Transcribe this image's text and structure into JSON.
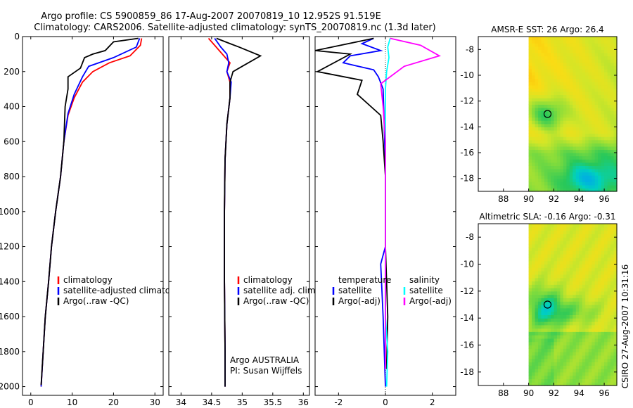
{
  "header": {
    "line1": "Argo profile: CS 5900859_86 17-Aug-2007 20070819_10 12.952S 91.519E",
    "line2": "Climatology: CARS2006. Satellite-adjusted climatology: synTS_20070819.nc (1.3d later)"
  },
  "side_label": "CSIRO 27-Aug-2007 10:31:16",
  "colors": {
    "climatology": "#ff0000",
    "satellite": "#0000ff",
    "argo": "#000000",
    "sal_satellite": "#00ffff",
    "sal_argo": "#ff00ff"
  },
  "chart_data": [
    {
      "type": "line",
      "id": "temperature",
      "xlabel": "temperature",
      "xlim": [
        -2,
        32
      ],
      "ylim": [
        2050,
        0
      ],
      "xticks": [
        "0",
        "10",
        "20",
        "30"
      ],
      "xtick_values": [
        0,
        10,
        20,
        30
      ],
      "yticks": [
        "0",
        "200",
        "400",
        "600",
        "800",
        "1000",
        "1200",
        "1400",
        "1600",
        "1800",
        "2000"
      ],
      "ytick_values": [
        0,
        200,
        400,
        600,
        800,
        1000,
        1200,
        1400,
        1600,
        1800,
        2000
      ],
      "legend": [
        "climatology",
        "satellite-adjusted climatology",
        "Argo(..raw -QC)"
      ],
      "series": [
        {
          "name": "climatology",
          "color": "#ff0000",
          "points": [
            [
              26.8,
              10
            ],
            [
              26.5,
              50
            ],
            [
              24,
              110
            ],
            [
              19,
              150
            ],
            [
              15,
              200
            ],
            [
              12.5,
              260
            ],
            [
              10.5,
              350
            ],
            [
              9,
              450
            ],
            [
              8,
              600
            ],
            [
              7.2,
              800
            ],
            [
              6,
              1000
            ],
            [
              5,
              1200
            ],
            [
              4.3,
              1400
            ],
            [
              3.5,
              1600
            ],
            [
              3,
              1800
            ],
            [
              2.5,
              2000
            ]
          ]
        },
        {
          "name": "satellite-adjusted climatology",
          "color": "#0000ff",
          "points": [
            [
              26.3,
              10
            ],
            [
              25.5,
              60
            ],
            [
              20,
              120
            ],
            [
              14,
              170
            ],
            [
              12.5,
              230
            ],
            [
              10.5,
              330
            ],
            [
              9,
              440
            ],
            [
              8,
              600
            ],
            [
              7.2,
              800
            ],
            [
              6,
              1000
            ],
            [
              5,
              1200
            ],
            [
              4.3,
              1400
            ],
            [
              3.5,
              1600
            ],
            [
              3,
              1800
            ],
            [
              2.5,
              2000
            ]
          ]
        },
        {
          "name": "Argo(..raw -QC)",
          "color": "#000000",
          "points": [
            [
              26,
              10
            ],
            [
              20,
              30
            ],
            [
              18,
              80
            ],
            [
              15,
              100
            ],
            [
              13,
              120
            ],
            [
              12,
              180
            ],
            [
              9,
              230
            ],
            [
              9,
              300
            ],
            [
              8.3,
              400
            ],
            [
              8,
              600
            ],
            [
              7.2,
              800
            ],
            [
              6,
              1000
            ],
            [
              5,
              1200
            ],
            [
              4.3,
              1400
            ],
            [
              3.5,
              1600
            ],
            [
              3,
              1800
            ],
            [
              2.5,
              1990
            ]
          ]
        }
      ]
    },
    {
      "type": "line",
      "id": "salinity",
      "xlabel": "salinity",
      "xlim": [
        33.8,
        36.1
      ],
      "ylim": [
        2050,
        0
      ],
      "xticks": [
        "34",
        "34.5",
        "35",
        "35.5",
        "36"
      ],
      "xtick_values": [
        34,
        34.5,
        35,
        35.5,
        36
      ],
      "legend": [
        "climatology",
        "satellite adj. clim.",
        "Argo(..raw -QC)"
      ],
      "annotation": [
        "Argo AUSTRALIA",
        "PI: Susan Wijffels"
      ],
      "series": [
        {
          "name": "climatology",
          "color": "#ff0000",
          "points": [
            [
              34.45,
              10
            ],
            [
              34.55,
              50
            ],
            [
              34.65,
              90
            ],
            [
              34.8,
              150
            ],
            [
              34.75,
              200
            ],
            [
              34.8,
              260
            ],
            [
              34.8,
              350
            ],
            [
              34.75,
              500
            ],
            [
              34.72,
              700
            ],
            [
              34.71,
              1000
            ],
            [
              34.71,
              1400
            ],
            [
              34.72,
              1800
            ],
            [
              34.72,
              2000
            ]
          ]
        },
        {
          "name": "satellite adj. clim.",
          "color": "#0000ff",
          "points": [
            [
              34.55,
              10
            ],
            [
              34.65,
              60
            ],
            [
              34.75,
              100
            ],
            [
              34.78,
              150
            ],
            [
              34.75,
              200
            ],
            [
              34.82,
              260
            ],
            [
              34.8,
              350
            ],
            [
              34.75,
              500
            ],
            [
              34.72,
              700
            ],
            [
              34.71,
              1000
            ],
            [
              34.71,
              1400
            ],
            [
              34.72,
              1800
            ],
            [
              34.72,
              2000
            ]
          ]
        },
        {
          "name": "Argo(..raw -QC)",
          "color": "#000000",
          "points": [
            [
              34.58,
              10
            ],
            [
              34.8,
              40
            ],
            [
              34.95,
              60
            ],
            [
              35.3,
              110
            ],
            [
              35.0,
              170
            ],
            [
              34.85,
              200
            ],
            [
              34.8,
              260
            ],
            [
              34.8,
              350
            ],
            [
              34.75,
              500
            ],
            [
              34.72,
              700
            ],
            [
              34.71,
              1000
            ],
            [
              34.71,
              1400
            ],
            [
              34.72,
              1800
            ],
            [
              34.72,
              2000
            ]
          ]
        }
      ]
    },
    {
      "type": "line",
      "id": "difference",
      "xlabel": "difference from climatology",
      "xlim": [
        -3,
        3
      ],
      "ylim": [
        2050,
        0
      ],
      "xticks": [
        "-2",
        "0",
        "2"
      ],
      "xtick_values": [
        -2,
        0,
        2
      ],
      "legend_left_title": "temperature",
      "legend_right_title": "salinity",
      "legend_left": [
        "satellite",
        "Argo(-adj)"
      ],
      "legend_right": [
        "satellite",
        "Argo(-adj)"
      ],
      "series": [
        {
          "name": "temperature satellite",
          "color": "#0000ff",
          "points": [
            [
              -0.5,
              10
            ],
            [
              -1,
              40
            ],
            [
              -0.2,
              80
            ],
            [
              -1.5,
              110
            ],
            [
              -1.8,
              150
            ],
            [
              -0.5,
              190
            ],
            [
              -0.3,
              230
            ],
            [
              -0.1,
              300
            ],
            [
              -0.05,
              500
            ],
            [
              0,
              800
            ],
            [
              0,
              1200
            ],
            [
              -0.2,
              1300
            ],
            [
              -0.1,
              1600
            ],
            [
              0,
              2000
            ]
          ]
        },
        {
          "name": "temperature Argo(-adj)",
          "color": "#000000",
          "points": [
            [
              -0.5,
              10
            ],
            [
              -3,
              80
            ],
            [
              -1.5,
              100
            ],
            [
              -2.9,
              200
            ],
            [
              -1,
              250
            ],
            [
              -1.2,
              330
            ],
            [
              -0.2,
              450
            ],
            [
              -0.1,
              600
            ],
            [
              0,
              800
            ],
            [
              0,
              1200
            ],
            [
              0.1,
              1600
            ],
            [
              0.05,
              1900
            ]
          ]
        },
        {
          "name": "salinity satellite",
          "color": "#00ffff",
          "points": [
            [
              0.2,
              10
            ],
            [
              0.1,
              60
            ],
            [
              0.15,
              120
            ],
            [
              0.05,
              200
            ],
            [
              0,
              300
            ],
            [
              0,
              600
            ],
            [
              0,
              1200
            ],
            [
              0,
              1600
            ],
            [
              0.1,
              1800
            ],
            [
              0.05,
              2000
            ]
          ]
        },
        {
          "name": "salinity Argo(-adj)",
          "color": "#ff00ff",
          "points": [
            [
              0.2,
              10
            ],
            [
              1.5,
              50
            ],
            [
              2.3,
              110
            ],
            [
              0.8,
              170
            ],
            [
              -0.2,
              270
            ],
            [
              -0.1,
              400
            ],
            [
              0,
              600
            ],
            [
              0,
              1200
            ],
            [
              0,
              1600
            ],
            [
              0,
              1900
            ]
          ]
        }
      ]
    },
    {
      "type": "heatmap",
      "id": "sst-map",
      "title": "AMSR-E SST: 26 Argo: 26.4",
      "xlim": [
        86,
        97
      ],
      "ylim": [
        -19,
        -7
      ],
      "xticks": [
        "88",
        "90",
        "92",
        "94",
        "96"
      ],
      "xtick_values": [
        88,
        90,
        92,
        94,
        96
      ],
      "yticks": [
        "-8",
        "-10",
        "-12",
        "-14",
        "-16",
        "-18"
      ],
      "ytick_values": [
        -8,
        -10,
        -12,
        -14,
        -16,
        -18
      ],
      "marker": [
        91.5,
        -13
      ]
    },
    {
      "type": "heatmap",
      "id": "sla-map",
      "title": "Altimetric SLA: -0.16 Argo: -0.31",
      "xlim": [
        86,
        97
      ],
      "ylim": [
        -19,
        -7
      ],
      "xticks": [
        "88",
        "90",
        "92",
        "94",
        "96"
      ],
      "xtick_values": [
        88,
        90,
        92,
        94,
        96
      ],
      "yticks": [
        "-8",
        "-10",
        "-12",
        "-14",
        "-16",
        "-18"
      ],
      "ytick_values": [
        -8,
        -10,
        -12,
        -14,
        -16,
        -18
      ],
      "marker": [
        91.5,
        -13
      ]
    }
  ]
}
